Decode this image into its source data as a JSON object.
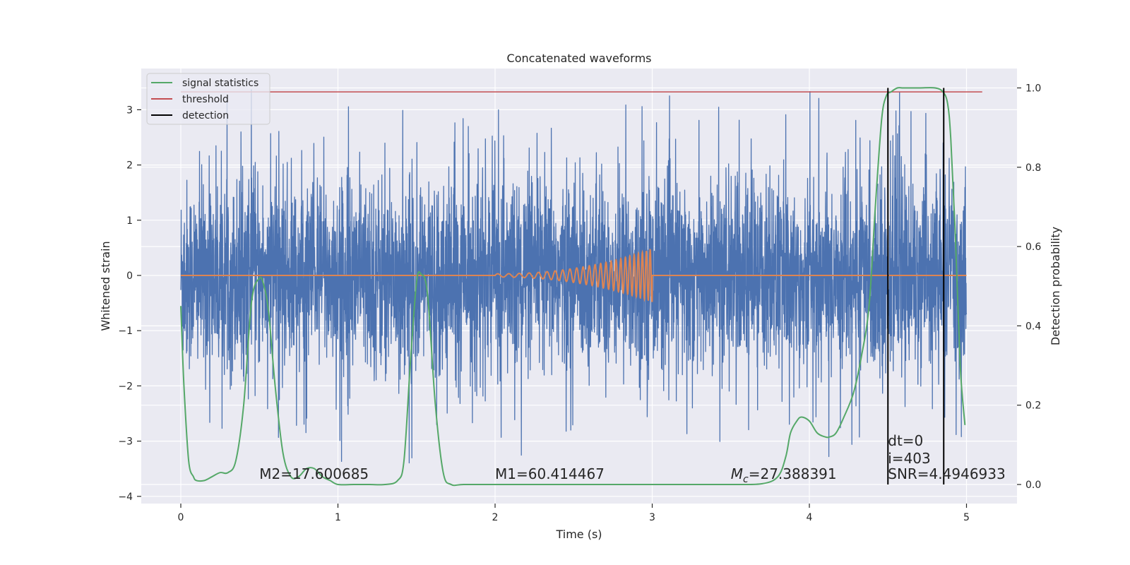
{
  "chart_data": {
    "type": "line",
    "title": "Concatenated waveforms",
    "xlabel": "Time (s)",
    "ylabel_left": "Whitened strain",
    "ylabel_right": "Detection probability",
    "xlim": [
      -0.25,
      5.35
    ],
    "ylim_left": [
      -4.2,
      3.8
    ],
    "ylim_right": [
      -0.045,
      1.03
    ],
    "xticks": [
      0,
      1,
      2,
      3,
      4,
      5
    ],
    "yticks_left": [
      -4,
      -3,
      -2,
      -1,
      0,
      1,
      2,
      3
    ],
    "yticks_right": [
      0.0,
      0.2,
      0.4,
      0.6,
      0.8,
      1.0
    ],
    "grid": true,
    "legend_position": "top-left",
    "legend": [
      {
        "label": "signal statistics",
        "color": "#55a868"
      },
      {
        "label": "threshold",
        "color": "#c44e52"
      },
      {
        "label": "detection",
        "color": "#000000"
      }
    ],
    "colors": {
      "strain": "#4c72b0",
      "template": "#dd8452",
      "signal_statistics": "#55a868",
      "threshold": "#c44e52",
      "detection": "#000000",
      "axes_bg": "#eaeaf2"
    },
    "strain": {
      "x_start": 0,
      "x_end": 5,
      "typical_range": [
        -2.4,
        2.4
      ],
      "peak_range": [
        -3.8,
        3.4
      ]
    },
    "template_chirp": {
      "x_start": 2.0,
      "x_end": 3.0,
      "amplitude_max": 0.48,
      "flat_range": [
        0,
        5
      ]
    },
    "threshold": {
      "value": 0.99,
      "x_range": [
        0,
        5.1
      ]
    },
    "signal_statistics": {
      "x": [
        0.0,
        0.02,
        0.05,
        0.08,
        0.1,
        0.15,
        0.2,
        0.25,
        0.3,
        0.35,
        0.4,
        0.45,
        0.5,
        0.53,
        0.56,
        0.6,
        0.65,
        0.7,
        0.75,
        0.8,
        0.85,
        0.9,
        0.95,
        1.0,
        1.1,
        1.2,
        1.3,
        1.38,
        1.42,
        1.46,
        1.5,
        1.53,
        1.57,
        1.62,
        1.67,
        1.72,
        1.8,
        2.0,
        2.5,
        3.0,
        3.5,
        3.7,
        3.8,
        3.85,
        3.88,
        3.92,
        3.95,
        4.0,
        4.05,
        4.1,
        4.13,
        4.17,
        4.22,
        4.28,
        4.33,
        4.38,
        4.42,
        4.46,
        4.49,
        4.52,
        4.56,
        4.6,
        4.7,
        4.8,
        4.85,
        4.88,
        4.9,
        4.93,
        4.96,
        4.99
      ],
      "y": [
        0.45,
        0.25,
        0.06,
        0.02,
        0.01,
        0.01,
        0.02,
        0.03,
        0.03,
        0.06,
        0.2,
        0.46,
        0.52,
        0.5,
        0.43,
        0.25,
        0.08,
        0.02,
        0.02,
        0.04,
        0.04,
        0.02,
        0.01,
        0.0,
        0.0,
        0.0,
        0.0,
        0.01,
        0.06,
        0.3,
        0.51,
        0.53,
        0.48,
        0.2,
        0.03,
        0.0,
        0.0,
        0.0,
        0.0,
        0.0,
        0.0,
        0.002,
        0.02,
        0.07,
        0.13,
        0.16,
        0.17,
        0.16,
        0.13,
        0.12,
        0.12,
        0.13,
        0.17,
        0.23,
        0.32,
        0.45,
        0.7,
        0.92,
        0.98,
        0.99,
        1.0,
        1.0,
        1.0,
        1.0,
        0.99,
        0.96,
        0.87,
        0.62,
        0.3,
        0.15
      ]
    },
    "detections": [
      {
        "x": 4.5,
        "y_range": [
          0.0,
          1.0
        ]
      },
      {
        "x": 4.855,
        "y_range": [
          0.0,
          1.0
        ]
      }
    ],
    "annotations": [
      {
        "text": "M2=17.600685",
        "x": 0.5,
        "y": -3.68
      },
      {
        "text": "M1=60.414467",
        "x": 2.0,
        "y": -3.68
      },
      {
        "text": "Mc",
        "text_suffix": "=27.388391",
        "x": 3.5,
        "y": -3.68
      },
      {
        "text": "dt=0",
        "x": 4.5,
        "y": -3.08
      },
      {
        "text": "i=403",
        "x": 4.5,
        "y": -3.4
      },
      {
        "text": "SNR=4.4946933",
        "x": 4.5,
        "y": -3.68
      }
    ]
  }
}
